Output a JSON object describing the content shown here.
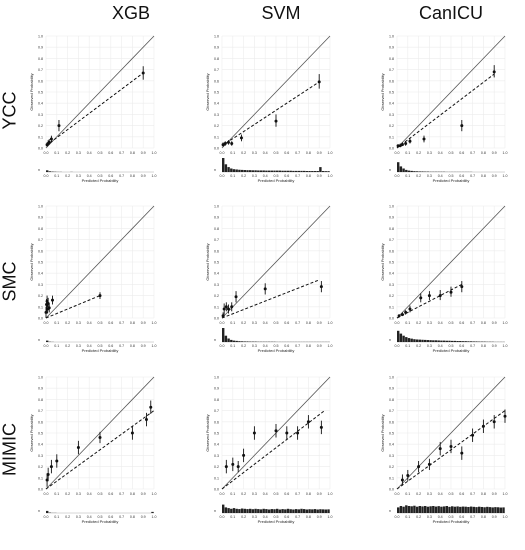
{
  "column_titles": [
    "XGB",
    "SVM",
    "CanICU"
  ],
  "row_titles": [
    "YCC",
    "SMC",
    "MIMIC"
  ],
  "axis_labels": {
    "x": "Predicted Probability",
    "y": "Observed Probability",
    "hist": "n"
  },
  "tick_labels": {
    "x": [
      "0.0",
      "0.1",
      "0.2",
      "0.3",
      "0.4",
      "0.5",
      "0.6",
      "0.7",
      "0.8",
      "0.9",
      "1.0"
    ],
    "y": [
      "0.0",
      "0.1",
      "0.2",
      "0.3",
      "0.4",
      "0.5",
      "0.6",
      "0.7",
      "0.8",
      "0.9",
      "1.0"
    ]
  },
  "colors": {
    "points": "#111111",
    "ideal_line": "#555555",
    "fit_line": "#111111",
    "grid": "#ececec",
    "hist": "#222222"
  },
  "chart_data": [
    {
      "type": "scatter",
      "row": "YCC",
      "column": "XGB",
      "xlim": [
        0,
        1
      ],
      "ylim": [
        0,
        1
      ],
      "points": [
        {
          "x": 0.01,
          "y": 0.03,
          "lo": 0.01,
          "hi": 0.05
        },
        {
          "x": 0.02,
          "y": 0.04,
          "lo": 0.02,
          "hi": 0.07
        },
        {
          "x": 0.03,
          "y": 0.05,
          "lo": 0.03,
          "hi": 0.08
        },
        {
          "x": 0.05,
          "y": 0.08,
          "lo": 0.05,
          "hi": 0.11
        },
        {
          "x": 0.12,
          "y": 0.2,
          "lo": 0.15,
          "hi": 0.25
        },
        {
          "x": 0.9,
          "y": 0.67,
          "lo": 0.61,
          "hi": 0.73
        }
      ],
      "fit_line": [
        [
          0.0,
          0.02
        ],
        [
          0.9,
          0.67
        ]
      ],
      "histogram": [
        0.12,
        0.05,
        0.03,
        0.02,
        0.01,
        0.01,
        0,
        0,
        0,
        0.01,
        0,
        0,
        0,
        0,
        0,
        0,
        0,
        0,
        0,
        0,
        0,
        0,
        0,
        0,
        0,
        0,
        0,
        0,
        0,
        0,
        0,
        0,
        0,
        0,
        0,
        0,
        0,
        0,
        0,
        0
      ]
    },
    {
      "type": "scatter",
      "row": "YCC",
      "column": "SVM",
      "xlim": [
        0,
        1
      ],
      "ylim": [
        0,
        1
      ],
      "points": [
        {
          "x": 0.01,
          "y": 0.03,
          "lo": 0.01,
          "hi": 0.05
        },
        {
          "x": 0.03,
          "y": 0.04,
          "lo": 0.02,
          "hi": 0.06
        },
        {
          "x": 0.06,
          "y": 0.05,
          "lo": 0.03,
          "hi": 0.07
        },
        {
          "x": 0.09,
          "y": 0.04,
          "lo": 0.02,
          "hi": 0.06
        },
        {
          "x": 0.18,
          "y": 0.09,
          "lo": 0.06,
          "hi": 0.12
        },
        {
          "x": 0.5,
          "y": 0.24,
          "lo": 0.19,
          "hi": 0.3
        },
        {
          "x": 0.9,
          "y": 0.59,
          "lo": 0.53,
          "hi": 0.66
        }
      ],
      "fit_line": [
        [
          0.0,
          0.02
        ],
        [
          0.9,
          0.59
        ]
      ],
      "histogram": [
        1.0,
        0.55,
        0.35,
        0.25,
        0.2,
        0.18,
        0.16,
        0.15,
        0.14,
        0.13,
        0.13,
        0.12,
        0.12,
        0.11,
        0.11,
        0.11,
        0.1,
        0.1,
        0.1,
        0.1,
        0.1,
        0.1,
        0.09,
        0.09,
        0.09,
        0.09,
        0.08,
        0.08,
        0.08,
        0.08,
        0.08,
        0.07,
        0.07,
        0.07,
        0.07,
        0.07,
        0.35,
        0.07,
        0.06,
        0.06
      ]
    },
    {
      "type": "scatter",
      "row": "YCC",
      "column": "CanICU",
      "xlim": [
        0,
        1
      ],
      "ylim": [
        0,
        1
      ],
      "points": [
        {
          "x": 0.01,
          "y": 0.02,
          "lo": 0.01,
          "hi": 0.03
        },
        {
          "x": 0.03,
          "y": 0.02,
          "lo": 0.01,
          "hi": 0.04
        },
        {
          "x": 0.05,
          "y": 0.03,
          "lo": 0.02,
          "hi": 0.05
        },
        {
          "x": 0.08,
          "y": 0.04,
          "lo": 0.02,
          "hi": 0.06
        },
        {
          "x": 0.12,
          "y": 0.06,
          "lo": 0.04,
          "hi": 0.09
        },
        {
          "x": 0.25,
          "y": 0.08,
          "lo": 0.05,
          "hi": 0.11
        },
        {
          "x": 0.6,
          "y": 0.2,
          "lo": 0.15,
          "hi": 0.25
        },
        {
          "x": 0.9,
          "y": 0.68,
          "lo": 0.63,
          "hi": 0.74
        }
      ],
      "fit_line": [
        [
          0.0,
          0.0
        ],
        [
          0.9,
          0.66
        ]
      ],
      "histogram": [
        0.7,
        0.4,
        0.25,
        0.15,
        0.1,
        0.08,
        0.06,
        0.05,
        0.04,
        0.04,
        0.03,
        0.03,
        0.02,
        0.02,
        0.02,
        0.02,
        0.02,
        0.02,
        0.01,
        0.01,
        0.01,
        0.01,
        0.01,
        0.01,
        0.01,
        0.01,
        0.01,
        0.01,
        0,
        0,
        0,
        0,
        0,
        0,
        0,
        0,
        0,
        0,
        0,
        0
      ]
    },
    {
      "type": "scatter",
      "row": "SMC",
      "column": "XGB",
      "xlim": [
        0,
        1
      ],
      "ylim": [
        0,
        1
      ],
      "points": [
        {
          "x": 0.0,
          "y": 0.05,
          "lo": 0.0,
          "hi": 0.1
        },
        {
          "x": 0.005,
          "y": 0.12,
          "lo": 0.06,
          "hi": 0.17
        },
        {
          "x": 0.01,
          "y": 0.15,
          "lo": 0.1,
          "hi": 0.2
        },
        {
          "x": 0.015,
          "y": 0.08,
          "lo": 0.04,
          "hi": 0.12
        },
        {
          "x": 0.02,
          "y": 0.13,
          "lo": 0.08,
          "hi": 0.18
        },
        {
          "x": 0.03,
          "y": 0.09,
          "lo": 0.05,
          "hi": 0.13
        },
        {
          "x": 0.06,
          "y": 0.16,
          "lo": 0.12,
          "hi": 0.2
        },
        {
          "x": 0.5,
          "y": 0.2,
          "lo": 0.17,
          "hi": 0.23
        }
      ],
      "fit_line": [
        [
          0.0,
          0.0
        ],
        [
          0.5,
          0.2
        ]
      ],
      "histogram": [
        0.1,
        0.02,
        0.01,
        0,
        0,
        0,
        0,
        0,
        0,
        0,
        0,
        0,
        0,
        0,
        0,
        0,
        0,
        0,
        0,
        0,
        0,
        0,
        0,
        0,
        0,
        0,
        0,
        0,
        0,
        0,
        0,
        0,
        0,
        0,
        0,
        0,
        0,
        0,
        0,
        0
      ]
    },
    {
      "type": "scatter",
      "row": "SMC",
      "column": "SVM",
      "xlim": [
        0,
        1
      ],
      "ylim": [
        0,
        1
      ],
      "points": [
        {
          "x": 0.01,
          "y": 0.02,
          "lo": 0.0,
          "hi": 0.05
        },
        {
          "x": 0.02,
          "y": 0.08,
          "lo": 0.03,
          "hi": 0.13
        },
        {
          "x": 0.04,
          "y": 0.1,
          "lo": 0.06,
          "hi": 0.14
        },
        {
          "x": 0.06,
          "y": 0.08,
          "lo": 0.04,
          "hi": 0.12
        },
        {
          "x": 0.09,
          "y": 0.1,
          "lo": 0.06,
          "hi": 0.14
        },
        {
          "x": 0.13,
          "y": 0.19,
          "lo": 0.14,
          "hi": 0.24
        },
        {
          "x": 0.4,
          "y": 0.26,
          "lo": 0.21,
          "hi": 0.31
        },
        {
          "x": 0.92,
          "y": 0.28,
          "lo": 0.23,
          "hi": 0.33
        }
      ],
      "fit_line": [
        [
          0.0,
          0.0
        ],
        [
          0.9,
          0.34
        ]
      ],
      "histogram": [
        1.0,
        0.45,
        0.25,
        0.15,
        0.1,
        0.08,
        0.06,
        0.05,
        0.04,
        0.04,
        0.03,
        0.03,
        0.03,
        0.02,
        0.02,
        0.02,
        0.02,
        0.02,
        0.02,
        0.02,
        0.01,
        0.01,
        0.01,
        0.01,
        0.01,
        0.01,
        0.01,
        0.01,
        0.01,
        0.01,
        0.01,
        0.01,
        0.01,
        0.01,
        0.01,
        0.01,
        0.01,
        0.01,
        0.01,
        0.01
      ]
    },
    {
      "type": "scatter",
      "row": "SMC",
      "column": "CanICU",
      "xlim": [
        0,
        1
      ],
      "ylim": [
        0,
        1
      ],
      "points": [
        {
          "x": 0.02,
          "y": 0.02,
          "lo": 0.01,
          "hi": 0.03
        },
        {
          "x": 0.05,
          "y": 0.03,
          "lo": 0.02,
          "hi": 0.05
        },
        {
          "x": 0.08,
          "y": 0.05,
          "lo": 0.03,
          "hi": 0.07
        },
        {
          "x": 0.12,
          "y": 0.08,
          "lo": 0.05,
          "hi": 0.11
        },
        {
          "x": 0.22,
          "y": 0.18,
          "lo": 0.14,
          "hi": 0.22
        },
        {
          "x": 0.3,
          "y": 0.2,
          "lo": 0.16,
          "hi": 0.24
        },
        {
          "x": 0.4,
          "y": 0.2,
          "lo": 0.16,
          "hi": 0.25
        },
        {
          "x": 0.5,
          "y": 0.23,
          "lo": 0.19,
          "hi": 0.28
        },
        {
          "x": 0.6,
          "y": 0.28,
          "lo": 0.23,
          "hi": 0.33
        }
      ],
      "fit_line": [
        [
          0.0,
          0.0
        ],
        [
          0.6,
          0.3
        ]
      ],
      "histogram": [
        0.8,
        0.6,
        0.45,
        0.35,
        0.28,
        0.24,
        0.2,
        0.18,
        0.17,
        0.16,
        0.15,
        0.14,
        0.13,
        0.12,
        0.12,
        0.11,
        0.1,
        0.1,
        0.09,
        0.09,
        0.08,
        0.08,
        0.07,
        0.07,
        0.06,
        0.06,
        0.05,
        0.05,
        0.04,
        0.04,
        0.03,
        0.03,
        0.03,
        0.02,
        0.02,
        0.02,
        0.01,
        0.01,
        0.01,
        0.01
      ]
    },
    {
      "type": "scatter",
      "row": "MIMIC",
      "column": "XGB",
      "xlim": [
        0,
        1
      ],
      "ylim": [
        0,
        1
      ],
      "points": [
        {
          "x": 0.01,
          "y": 0.08,
          "lo": 0.02,
          "hi": 0.14
        },
        {
          "x": 0.02,
          "y": 0.13,
          "lo": 0.07,
          "hi": 0.19
        },
        {
          "x": 0.05,
          "y": 0.2,
          "lo": 0.14,
          "hi": 0.26
        },
        {
          "x": 0.1,
          "y": 0.25,
          "lo": 0.19,
          "hi": 0.31
        },
        {
          "x": 0.3,
          "y": 0.37,
          "lo": 0.31,
          "hi": 0.43
        },
        {
          "x": 0.5,
          "y": 0.46,
          "lo": 0.41,
          "hi": 0.51
        },
        {
          "x": 0.8,
          "y": 0.5,
          "lo": 0.44,
          "hi": 0.56
        },
        {
          "x": 0.93,
          "y": 0.62,
          "lo": 0.56,
          "hi": 0.68
        },
        {
          "x": 0.97,
          "y": 0.73,
          "lo": 0.67,
          "hi": 0.79
        }
      ],
      "fit_line": [
        [
          0.0,
          0.0
        ],
        [
          1.0,
          0.7
        ]
      ],
      "histogram": [
        0.15,
        0.03,
        0.01,
        0.01,
        0,
        0,
        0,
        0,
        0,
        0,
        0,
        0,
        0,
        0,
        0,
        0,
        0,
        0,
        0,
        0,
        0,
        0,
        0,
        0,
        0,
        0,
        0,
        0,
        0,
        0,
        0,
        0,
        0,
        0,
        0,
        0,
        0,
        0,
        0,
        0.08
      ]
    },
    {
      "type": "scatter",
      "row": "MIMIC",
      "column": "SVM",
      "xlim": [
        0,
        1
      ],
      "ylim": [
        0,
        1
      ],
      "points": [
        {
          "x": 0.04,
          "y": 0.2,
          "lo": 0.14,
          "hi": 0.26
        },
        {
          "x": 0.1,
          "y": 0.22,
          "lo": 0.16,
          "hi": 0.28
        },
        {
          "x": 0.15,
          "y": 0.2,
          "lo": 0.15,
          "hi": 0.25
        },
        {
          "x": 0.2,
          "y": 0.3,
          "lo": 0.24,
          "hi": 0.36
        },
        {
          "x": 0.3,
          "y": 0.5,
          "lo": 0.44,
          "hi": 0.56
        },
        {
          "x": 0.5,
          "y": 0.52,
          "lo": 0.46,
          "hi": 0.58
        },
        {
          "x": 0.6,
          "y": 0.5,
          "lo": 0.44,
          "hi": 0.56
        },
        {
          "x": 0.7,
          "y": 0.5,
          "lo": 0.44,
          "hi": 0.56
        },
        {
          "x": 0.8,
          "y": 0.6,
          "lo": 0.54,
          "hi": 0.66
        },
        {
          "x": 0.92,
          "y": 0.55,
          "lo": 0.49,
          "hi": 0.61
        }
      ],
      "fit_line": [
        [
          0.0,
          0.0
        ],
        [
          0.95,
          0.7
        ]
      ],
      "histogram": [
        0.6,
        0.4,
        0.35,
        0.3,
        0.35,
        0.3,
        0.28,
        0.32,
        0.3,
        0.28,
        0.3,
        0.27,
        0.3,
        0.28,
        0.26,
        0.3,
        0.28,
        0.25,
        0.28,
        0.27,
        0.3,
        0.25,
        0.28,
        0.26,
        0.3,
        0.27,
        0.25,
        0.28,
        0.26,
        0.3,
        0.28,
        0.25,
        0.27,
        0.26,
        0.28,
        0.25,
        0.27,
        0.26,
        0.25,
        0.26
      ]
    },
    {
      "type": "scatter",
      "row": "MIMIC",
      "column": "CanICU",
      "xlim": [
        0,
        1
      ],
      "ylim": [
        0,
        1
      ],
      "points": [
        {
          "x": 0.05,
          "y": 0.08,
          "lo": 0.03,
          "hi": 0.13
        },
        {
          "x": 0.1,
          "y": 0.12,
          "lo": 0.07,
          "hi": 0.17
        },
        {
          "x": 0.2,
          "y": 0.2,
          "lo": 0.15,
          "hi": 0.25
        },
        {
          "x": 0.3,
          "y": 0.22,
          "lo": 0.17,
          "hi": 0.27
        },
        {
          "x": 0.4,
          "y": 0.36,
          "lo": 0.3,
          "hi": 0.42
        },
        {
          "x": 0.5,
          "y": 0.38,
          "lo": 0.32,
          "hi": 0.44
        },
        {
          "x": 0.6,
          "y": 0.32,
          "lo": 0.26,
          "hi": 0.38
        },
        {
          "x": 0.7,
          "y": 0.48,
          "lo": 0.42,
          "hi": 0.54
        },
        {
          "x": 0.8,
          "y": 0.56,
          "lo": 0.5,
          "hi": 0.62
        },
        {
          "x": 0.9,
          "y": 0.6,
          "lo": 0.54,
          "hi": 0.66
        },
        {
          "x": 1.0,
          "y": 0.65,
          "lo": 0.59,
          "hi": 0.71
        }
      ],
      "fit_line": [
        [
          0.0,
          0.0
        ],
        [
          1.0,
          0.7
        ]
      ],
      "histogram": [
        0.4,
        0.5,
        0.45,
        0.55,
        0.5,
        0.48,
        0.52,
        0.45,
        0.5,
        0.47,
        0.5,
        0.45,
        0.48,
        0.5,
        0.46,
        0.49,
        0.45,
        0.47,
        0.5,
        0.44,
        0.48,
        0.45,
        0.47,
        0.44,
        0.46,
        0.45,
        0.43,
        0.46,
        0.44,
        0.42,
        0.45,
        0.43,
        0.41,
        0.44,
        0.42,
        0.4,
        0.42,
        0.41,
        0.39,
        0.4
      ]
    }
  ]
}
